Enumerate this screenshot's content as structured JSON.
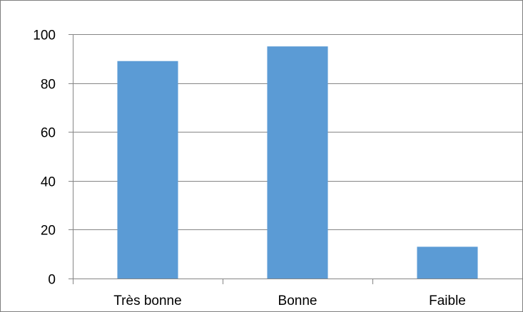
{
  "colors": {
    "bar": "#5b9bd5",
    "gridline": "#868686",
    "axis": "#868686",
    "frame": "#7f7f7f",
    "text": "#000000"
  },
  "chart_data": {
    "type": "bar",
    "categories": [
      "Très bonne",
      "Bonne",
      "Faible"
    ],
    "values": [
      89,
      95,
      13
    ],
    "title": "",
    "xlabel": "",
    "ylabel": "",
    "ylim": [
      0,
      100
    ],
    "yticks": [
      0,
      20,
      40,
      60,
      80,
      100
    ],
    "grid": true,
    "legend": "none"
  }
}
